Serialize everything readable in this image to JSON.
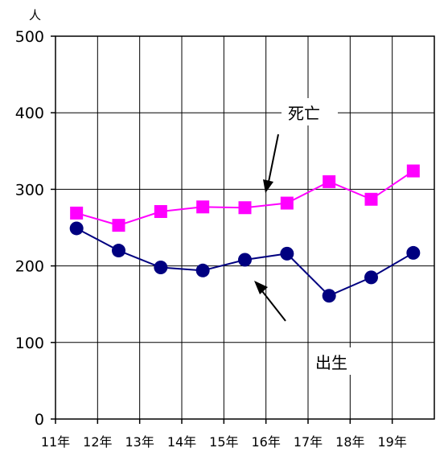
{
  "chart_data": {
    "type": "line",
    "unit_label": "人",
    "categories": [
      "11年",
      "12年",
      "13年",
      "14年",
      "15年",
      "16年",
      "17年",
      "18年",
      "19年"
    ],
    "ylim": [
      0,
      500
    ],
    "yticks": [
      "0",
      "100",
      "200",
      "300",
      "400",
      "500"
    ],
    "grid": true,
    "series": [
      {
        "name": "死亡",
        "marker": "square",
        "color": "#ff00ff",
        "values": [
          269,
          253,
          271,
          277,
          276,
          282,
          310,
          287,
          324
        ]
      },
      {
        "name": "出生",
        "marker": "circle",
        "color": "#000080",
        "values": [
          249,
          220,
          198,
          194,
          208,
          216,
          161,
          185,
          217
        ]
      }
    ],
    "annotations": {
      "death_label": "死亡",
      "birth_label": "出生"
    }
  }
}
